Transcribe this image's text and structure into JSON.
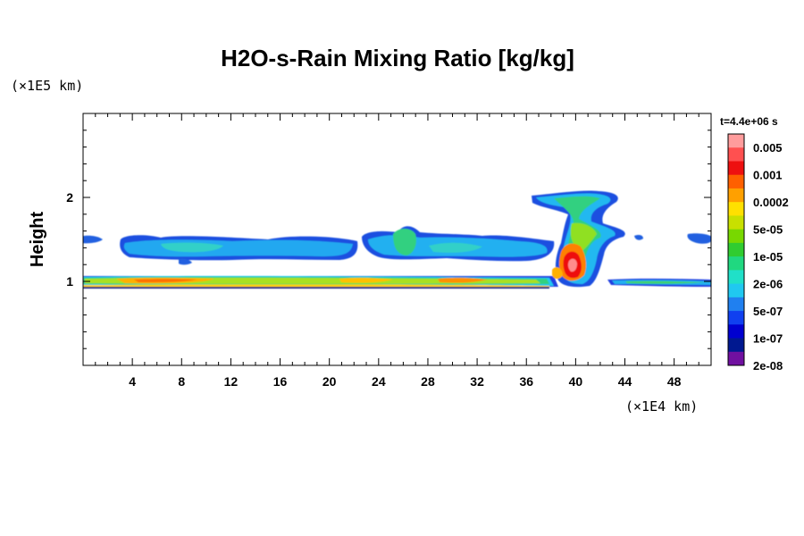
{
  "chart_data": {
    "type": "heatmap",
    "title": "H2O-s-Rain Mixing Ratio [kg/kg]",
    "ylabel": "Height",
    "xlabel": "",
    "x_unit": "(×1E4 km)",
    "y_unit": "(×1E5 km)",
    "time_label": "t=4.4e+06 s",
    "xlim": [
      0,
      51
    ],
    "ylim": [
      0,
      3
    ],
    "x_ticks": [
      4,
      8,
      12,
      16,
      20,
      24,
      28,
      32,
      36,
      40,
      44,
      48
    ],
    "x_tick_labels": [
      "4",
      "8",
      "12",
      "16",
      "20",
      "24",
      "28",
      "32",
      "36",
      "40",
      "44",
      "48"
    ],
    "y_ticks": [
      1,
      2
    ],
    "y_tick_labels": [
      "1",
      "2"
    ],
    "colorbar": {
      "labels": [
        "0.005",
        "0.001",
        "0.0002",
        "5e-05",
        "1e-05",
        "2e-06",
        "5e-07",
        "1e-07",
        "2e-08"
      ],
      "colors": [
        "#ff9c9c",
        "#ff5050",
        "#ee1010",
        "#ff6000",
        "#ffa000",
        "#ffe000",
        "#c8e000",
        "#78d800",
        "#30cc30",
        "#20d880",
        "#20e0c8",
        "#20c8f0",
        "#2080f0",
        "#1040f0",
        "#0000d0",
        "#001890",
        "#7010a0"
      ]
    },
    "features": [
      {
        "name": "lower layer",
        "x": [
          0,
          51
        ],
        "y": [
          0.95,
          1.05
        ],
        "level": "0.001"
      },
      {
        "name": "upper layer",
        "x": [
          3,
          37
        ],
        "y": [
          1.3,
          1.65
        ],
        "level": "1e-05"
      },
      {
        "name": "convective cell",
        "x": [
          36.5,
          43
        ],
        "y": [
          0.98,
          2.1
        ],
        "level": "0.005"
      }
    ]
  }
}
